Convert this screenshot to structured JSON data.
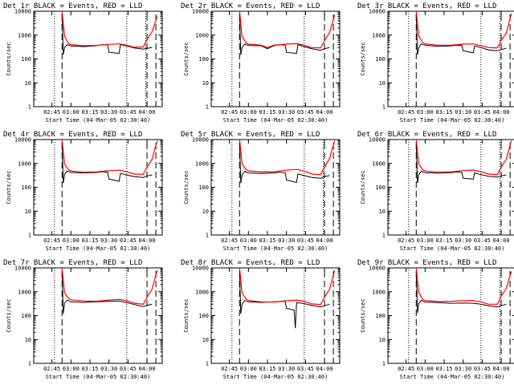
{
  "colors": {
    "events": "#000000",
    "lld": "#ff0000",
    "frame": "#000000",
    "background": "#ffffff"
  },
  "layout_grid": {
    "rows": 3,
    "cols": 3
  },
  "chart_data": [
    {
      "type": "line",
      "title": "Det 1r BLACK = Events, RED = LLD",
      "xlabel": "Start Time (04-Mar-05 02:30:40)",
      "ylabel": "Counts/sec",
      "y_scale": "log",
      "ylim": [
        1,
        10000
      ],
      "y_ticks": [
        "1",
        "10",
        "100",
        "1000",
        "10000"
      ],
      "x_ticks": [
        "02:45",
        "03:00",
        "03:15",
        "03:30",
        "03:45",
        "04:00"
      ],
      "xlim": [
        "02:30:40",
        "04:12"
      ],
      "vlines_dotted": [
        "02:47",
        "03:44",
        "03:59"
      ],
      "vlines_dashed": [
        "02:53",
        "04:00",
        "04:07"
      ],
      "series": [
        {
          "label": "Events",
          "color": "#000000",
          "x": [
            "02:53",
            "02:54",
            "02:55",
            "02:57",
            "03:00",
            "03:10",
            "03:20",
            "03:25",
            "03:29",
            "03:30",
            "03:38",
            "03:39",
            "03:44",
            "03:50",
            "03:57",
            "04:00",
            "04:04"
          ],
          "y": [
            8000,
            150,
            300,
            400,
            350,
            330,
            360,
            400,
            390,
            190,
            170,
            400,
            350,
            290,
            260,
            280,
            300
          ]
        },
        {
          "label": "LLD",
          "color": "#ff0000",
          "x": [
            "02:53",
            "02:55",
            "02:58",
            "03:00",
            "03:10",
            "03:20",
            "03:30",
            "03:38",
            "03:44",
            "03:50",
            "03:57",
            "04:00",
            "04:04",
            "04:08"
          ],
          "y": [
            10000,
            900,
            450,
            400,
            360,
            370,
            410,
            430,
            380,
            310,
            320,
            650,
            1400,
            6000
          ]
        }
      ]
    },
    {
      "type": "line",
      "title": "Det 2r BLACK = Events, RED = LLD",
      "xlabel": "Start Time (04-Mar-05 02:30:40)",
      "ylabel": "Counts/sec",
      "y_scale": "log",
      "ylim": [
        1,
        10000
      ],
      "y_ticks": [
        "1",
        "10",
        "100",
        "1000",
        "10000"
      ],
      "x_ticks": [
        "02:45",
        "03:00",
        "03:15",
        "03:30",
        "03:45",
        "04:00"
      ],
      "xlim": [
        "02:30:40",
        "04:12"
      ],
      "vlines_dotted": [
        "02:47",
        "03:44"
      ],
      "vlines_dashed": [
        "02:53",
        "04:00",
        "04:07"
      ],
      "series": [
        {
          "label": "Events",
          "color": "#000000",
          "x": [
            "02:53",
            "02:54",
            "02:55",
            "02:57",
            "03:00",
            "03:10",
            "03:15",
            "03:20",
            "03:25",
            "03:29",
            "03:30",
            "03:38",
            "03:39",
            "03:44",
            "03:50",
            "03:57",
            "04:00",
            "04:04"
          ],
          "y": [
            8000,
            150,
            300,
            420,
            370,
            360,
            270,
            360,
            400,
            380,
            190,
            170,
            400,
            330,
            270,
            230,
            270,
            300
          ]
        },
        {
          "label": "LLD",
          "color": "#ff0000",
          "x": [
            "02:53",
            "02:55",
            "02:58",
            "03:00",
            "03:10",
            "03:15",
            "03:20",
            "03:30",
            "03:38",
            "03:44",
            "03:50",
            "03:57",
            "04:00",
            "04:04",
            "04:08"
          ],
          "y": [
            10000,
            900,
            480,
            420,
            380,
            300,
            380,
            420,
            440,
            380,
            300,
            290,
            600,
            1300,
            7000
          ]
        }
      ]
    },
    {
      "type": "line",
      "title": "Det 3r BLACK = Events, RED = LLD",
      "xlabel": "Start Time (04-Mar-05 02:30:40)",
      "ylabel": "Counts/sec",
      "y_scale": "log",
      "ylim": [
        1,
        10000
      ],
      "y_ticks": [
        "1",
        "10",
        "100",
        "1000",
        "10000"
      ],
      "x_ticks": [
        "02:45",
        "03:00",
        "03:15",
        "03:30",
        "03:45",
        "04:00"
      ],
      "xlim": [
        "02:30:40",
        "04:12"
      ],
      "vlines_dotted": [
        "02:47",
        "03:44",
        "03:59"
      ],
      "vlines_dashed": [
        "02:53",
        "04:00",
        "04:07"
      ],
      "series": [
        {
          "label": "Events",
          "color": "#000000",
          "x": [
            "02:53",
            "02:54",
            "02:55",
            "02:57",
            "03:00",
            "03:10",
            "03:20",
            "03:25",
            "03:29",
            "03:30",
            "03:38",
            "03:39",
            "03:44",
            "03:50",
            "03:57",
            "04:00",
            "04:04"
          ],
          "y": [
            8000,
            150,
            300,
            430,
            380,
            340,
            350,
            380,
            370,
            220,
            180,
            350,
            300,
            240,
            220,
            250,
            280
          ]
        },
        {
          "label": "LLD",
          "color": "#ff0000",
          "x": [
            "02:53",
            "02:55",
            "02:58",
            "03:00",
            "03:10",
            "03:20",
            "03:30",
            "03:38",
            "03:44",
            "03:50",
            "03:57",
            "04:00",
            "04:04",
            "04:08"
          ],
          "y": [
            10000,
            900,
            500,
            430,
            380,
            380,
            420,
            430,
            360,
            300,
            290,
            600,
            1200,
            8000
          ]
        }
      ]
    },
    {
      "type": "line",
      "title": "Det 4r BLACK = Events, RED = LLD",
      "xlabel": "Start Time (04-Mar-05 02:30:40)",
      "ylabel": "Counts/sec",
      "y_scale": "log",
      "ylim": [
        1,
        10000
      ],
      "y_ticks": [
        "1",
        "10",
        "100",
        "1000",
        "10000"
      ],
      "x_ticks": [
        "02:45",
        "03:00",
        "03:15",
        "03:30",
        "03:45",
        "04:00"
      ],
      "xlim": [
        "02:30:40",
        "04:12"
      ],
      "vlines_dotted": [
        "02:47",
        "03:44"
      ],
      "vlines_dashed": [
        "02:53",
        "04:00",
        "04:07"
      ],
      "series": [
        {
          "label": "Events",
          "color": "#000000",
          "x": [
            "02:53",
            "02:54",
            "02:55",
            "02:57",
            "03:00",
            "03:10",
            "03:20",
            "03:25",
            "03:29",
            "03:30",
            "03:38",
            "03:39",
            "03:44",
            "03:50",
            "03:57",
            "04:00",
            "04:04"
          ],
          "y": [
            8000,
            150,
            350,
            480,
            420,
            400,
            420,
            450,
            430,
            220,
            180,
            380,
            330,
            280,
            260,
            300,
            330
          ]
        },
        {
          "label": "LLD",
          "color": "#ff0000",
          "x": [
            "02:53",
            "02:55",
            "02:58",
            "03:00",
            "03:10",
            "03:20",
            "03:30",
            "03:38",
            "03:44",
            "03:50",
            "03:57",
            "04:00",
            "04:04",
            "04:08"
          ],
          "y": [
            10000,
            950,
            550,
            480,
            430,
            440,
            500,
            520,
            450,
            360,
            350,
            700,
            1500,
            9000
          ]
        }
      ]
    },
    {
      "type": "line",
      "title": "Det 5r BLACK = Events, RED = LLD",
      "xlabel": "Start Time (04-Mar-05 02:30:40)",
      "ylabel": "Counts/sec",
      "y_scale": "log",
      "ylim": [
        1,
        10000
      ],
      "y_ticks": [
        "1",
        "10",
        "100",
        "1000",
        "10000"
      ],
      "x_ticks": [
        "02:45",
        "03:00",
        "03:15",
        "03:30",
        "03:45",
        "04:00"
      ],
      "xlim": [
        "02:30:40",
        "04:12"
      ],
      "vlines_dotted": [
        "02:47",
        "03:44",
        "03:59"
      ],
      "vlines_dashed": [
        "02:53",
        "04:00",
        "04:07"
      ],
      "series": [
        {
          "label": "Events",
          "color": "#000000",
          "x": [
            "02:53",
            "02:54",
            "02:55",
            "02:57",
            "03:00",
            "03:10",
            "03:20",
            "03:25",
            "03:29",
            "03:30",
            "03:38",
            "03:39",
            "03:44",
            "03:50",
            "03:57",
            "04:00",
            "04:04"
          ],
          "y": [
            8000,
            150,
            330,
            470,
            400,
            380,
            400,
            430,
            410,
            200,
            160,
            360,
            310,
            260,
            240,
            280,
            310
          ]
        },
        {
          "label": "LLD",
          "color": "#ff0000",
          "x": [
            "02:53",
            "02:55",
            "02:58",
            "03:00",
            "03:10",
            "03:20",
            "03:30",
            "03:38",
            "03:44",
            "03:50",
            "03:57",
            "04:00",
            "04:04",
            "04:08"
          ],
          "y": [
            10000,
            950,
            560,
            490,
            440,
            450,
            520,
            560,
            480,
            360,
            340,
            700,
            1600,
            9000
          ]
        }
      ]
    },
    {
      "type": "line",
      "title": "Det 6r BLACK = Events, RED = LLD",
      "xlabel": "Start Time (04-Mar-05 02:30:40)",
      "ylabel": "Counts/sec",
      "y_scale": "log",
      "ylim": [
        1,
        10000
      ],
      "y_ticks": [
        "1",
        "10",
        "100",
        "1000",
        "10000"
      ],
      "x_ticks": [
        "02:45",
        "03:00",
        "03:15",
        "03:30",
        "03:45",
        "04:00"
      ],
      "xlim": [
        "02:30:40",
        "04:12"
      ],
      "vlines_dotted": [
        "02:47",
        "03:44",
        "03:59"
      ],
      "vlines_dashed": [
        "02:53",
        "04:00",
        "04:07"
      ],
      "series": [
        {
          "label": "Events",
          "color": "#000000",
          "x": [
            "02:53",
            "02:54",
            "02:55",
            "02:57",
            "03:00",
            "03:10",
            "03:20",
            "03:25",
            "03:29",
            "03:30",
            "03:38",
            "03:39",
            "03:44",
            "03:50",
            "03:57",
            "04:00",
            "04:04"
          ],
          "y": [
            8000,
            150,
            340,
            470,
            410,
            390,
            410,
            440,
            420,
            240,
            220,
            400,
            340,
            290,
            270,
            300,
            330
          ]
        },
        {
          "label": "LLD",
          "color": "#ff0000",
          "x": [
            "02:53",
            "02:55",
            "02:58",
            "03:00",
            "03:10",
            "03:20",
            "03:30",
            "03:38",
            "03:44",
            "03:50",
            "03:57",
            "04:00",
            "04:04",
            "04:08"
          ],
          "y": [
            10000,
            950,
            550,
            480,
            430,
            440,
            500,
            530,
            450,
            360,
            340,
            700,
            1500,
            9000
          ]
        }
      ]
    },
    {
      "type": "line",
      "title": "Det 7r BLACK = Events, RED = LLD",
      "xlabel": "Start Time (04-Mar-05 02:30:40)",
      "ylabel": "Counts/sec",
      "y_scale": "log",
      "ylim": [
        1,
        10000
      ],
      "y_ticks": [
        "1",
        "10",
        "100",
        "1000",
        "10000"
      ],
      "x_ticks": [
        "02:45",
        "03:00",
        "03:15",
        "03:30",
        "03:45",
        "04:00"
      ],
      "xlim": [
        "02:30:40",
        "04:12"
      ],
      "vlines_dotted": [
        "02:47",
        "03:44"
      ],
      "vlines_dashed": [
        "02:53",
        "04:00",
        "04:07"
      ],
      "series": [
        {
          "label": "Events",
          "color": "#000000",
          "x": [
            "02:53",
            "02:54",
            "02:55",
            "02:57",
            "03:00",
            "03:10",
            "03:20",
            "03:30",
            "03:38",
            "03:44",
            "03:50",
            "03:57",
            "04:00",
            "04:04"
          ],
          "y": [
            8000,
            120,
            330,
            450,
            380,
            360,
            380,
            400,
            410,
            350,
            290,
            240,
            270,
            300
          ]
        },
        {
          "label": "LLD",
          "color": "#ff0000",
          "x": [
            "02:53",
            "02:55",
            "02:58",
            "03:00",
            "03:10",
            "03:20",
            "03:30",
            "03:38",
            "03:44",
            "03:50",
            "03:57",
            "04:00",
            "04:04",
            "04:08"
          ],
          "y": [
            10000,
            900,
            520,
            460,
            410,
            400,
            450,
            480,
            420,
            330,
            300,
            600,
            1300,
            8000
          ]
        }
      ]
    },
    {
      "type": "line",
      "title": "Det 8r BLACK = Events, RED = LLD",
      "xlabel": "Start Time (04-Mar-05 02:30:40)",
      "ylabel": "Counts/sec",
      "y_scale": "log",
      "ylim": [
        1,
        10000
      ],
      "y_ticks": [
        "1",
        "10",
        "100",
        "1000",
        "10000"
      ],
      "x_ticks": [
        "02:45",
        "03:00",
        "03:15",
        "03:30",
        "03:45",
        "04:00"
      ],
      "xlim": [
        "02:30:40",
        "04:12"
      ],
      "vlines_dotted": [
        "02:47",
        "03:44"
      ],
      "vlines_dashed": [
        "02:53",
        "04:00",
        "04:07"
      ],
      "series": [
        {
          "label": "Events",
          "color": "#000000",
          "x": [
            "02:53",
            "02:54",
            "02:55",
            "02:57",
            "03:00",
            "03:10",
            "03:20",
            "03:25",
            "03:29",
            "03:30",
            "03:36",
            "03:37",
            "03:38",
            "03:44",
            "03:50",
            "03:57",
            "04:00",
            "04:04"
          ],
          "y": [
            8000,
            120,
            300,
            430,
            380,
            360,
            380,
            400,
            390,
            200,
            170,
            30,
            350,
            320,
            270,
            230,
            260,
            300
          ]
        },
        {
          "label": "LLD",
          "color": "#ff0000",
          "x": [
            "02:53",
            "02:55",
            "02:58",
            "03:00",
            "03:10",
            "03:20",
            "03:30",
            "03:38",
            "03:44",
            "03:50",
            "03:57",
            "04:00",
            "04:04",
            "04:08"
          ],
          "y": [
            10000,
            900,
            500,
            430,
            380,
            370,
            420,
            450,
            400,
            310,
            290,
            600,
            1300,
            8000
          ]
        }
      ]
    },
    {
      "type": "line",
      "title": "Det 9r BLACK = Events, RED = LLD",
      "xlabel": "Start Time (04-Mar-05 02:30:40)",
      "ylabel": "Counts/sec",
      "y_scale": "log",
      "ylim": [
        1,
        10000
      ],
      "y_ticks": [
        "1",
        "10",
        "100",
        "1000",
        "10000"
      ],
      "x_ticks": [
        "02:45",
        "03:00",
        "03:15",
        "03:30",
        "03:45",
        "04:00"
      ],
      "xlim": [
        "02:30:40",
        "04:12"
      ],
      "vlines_dotted": [
        "02:47",
        "03:44",
        "03:59"
      ],
      "vlines_dashed": [
        "02:53",
        "04:00",
        "04:07"
      ],
      "series": [
        {
          "label": "Events",
          "color": "#000000",
          "x": [
            "02:53",
            "02:54",
            "02:55",
            "02:57",
            "03:00",
            "03:10",
            "03:20",
            "03:30",
            "03:38",
            "03:44",
            "03:50",
            "03:57",
            "04:00",
            "04:04"
          ],
          "y": [
            8000,
            130,
            320,
            440,
            370,
            350,
            330,
            340,
            330,
            300,
            260,
            230,
            260,
            300
          ]
        },
        {
          "label": "LLD",
          "color": "#ff0000",
          "x": [
            "02:53",
            "02:55",
            "02:58",
            "03:00",
            "03:10",
            "03:20",
            "03:30",
            "03:38",
            "03:44",
            "03:50",
            "03:57",
            "04:00",
            "04:04",
            "04:08"
          ],
          "y": [
            10000,
            900,
            500,
            430,
            390,
            400,
            430,
            430,
            380,
            300,
            300,
            650,
            1400,
            7000
          ]
        }
      ]
    }
  ]
}
